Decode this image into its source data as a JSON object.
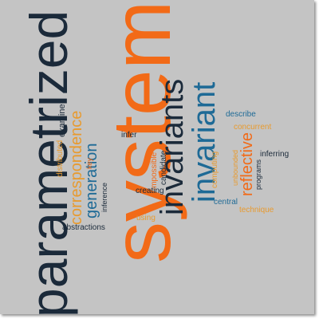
{
  "colors": {
    "background": "#c4c4c4",
    "navy": "#1b2a3a",
    "orange": "#f26a17",
    "blue": "#1e6a96",
    "gold": "#e89a2e"
  },
  "words": {
    "systems": "systems",
    "parametrized": "parametrized",
    "invariants": "invariants",
    "invariant": "invariant",
    "correspondence": "correspondence",
    "generation": "generation",
    "reflective": "reflective",
    "examine": "examine",
    "distributed": "distributed",
    "inference": "inference",
    "key": "key",
    "infer": "infer",
    "impossible": "impossible",
    "candidate": "candidate",
    "creating": "creating",
    "using": "using",
    "abstractions": "abstractions",
    "describe": "describe",
    "concurrent": "concurrent",
    "computing": "computing",
    "unbounded": "unbounded",
    "programs": "programs",
    "inferring": "inferring",
    "central": "central",
    "technique": "technique"
  }
}
